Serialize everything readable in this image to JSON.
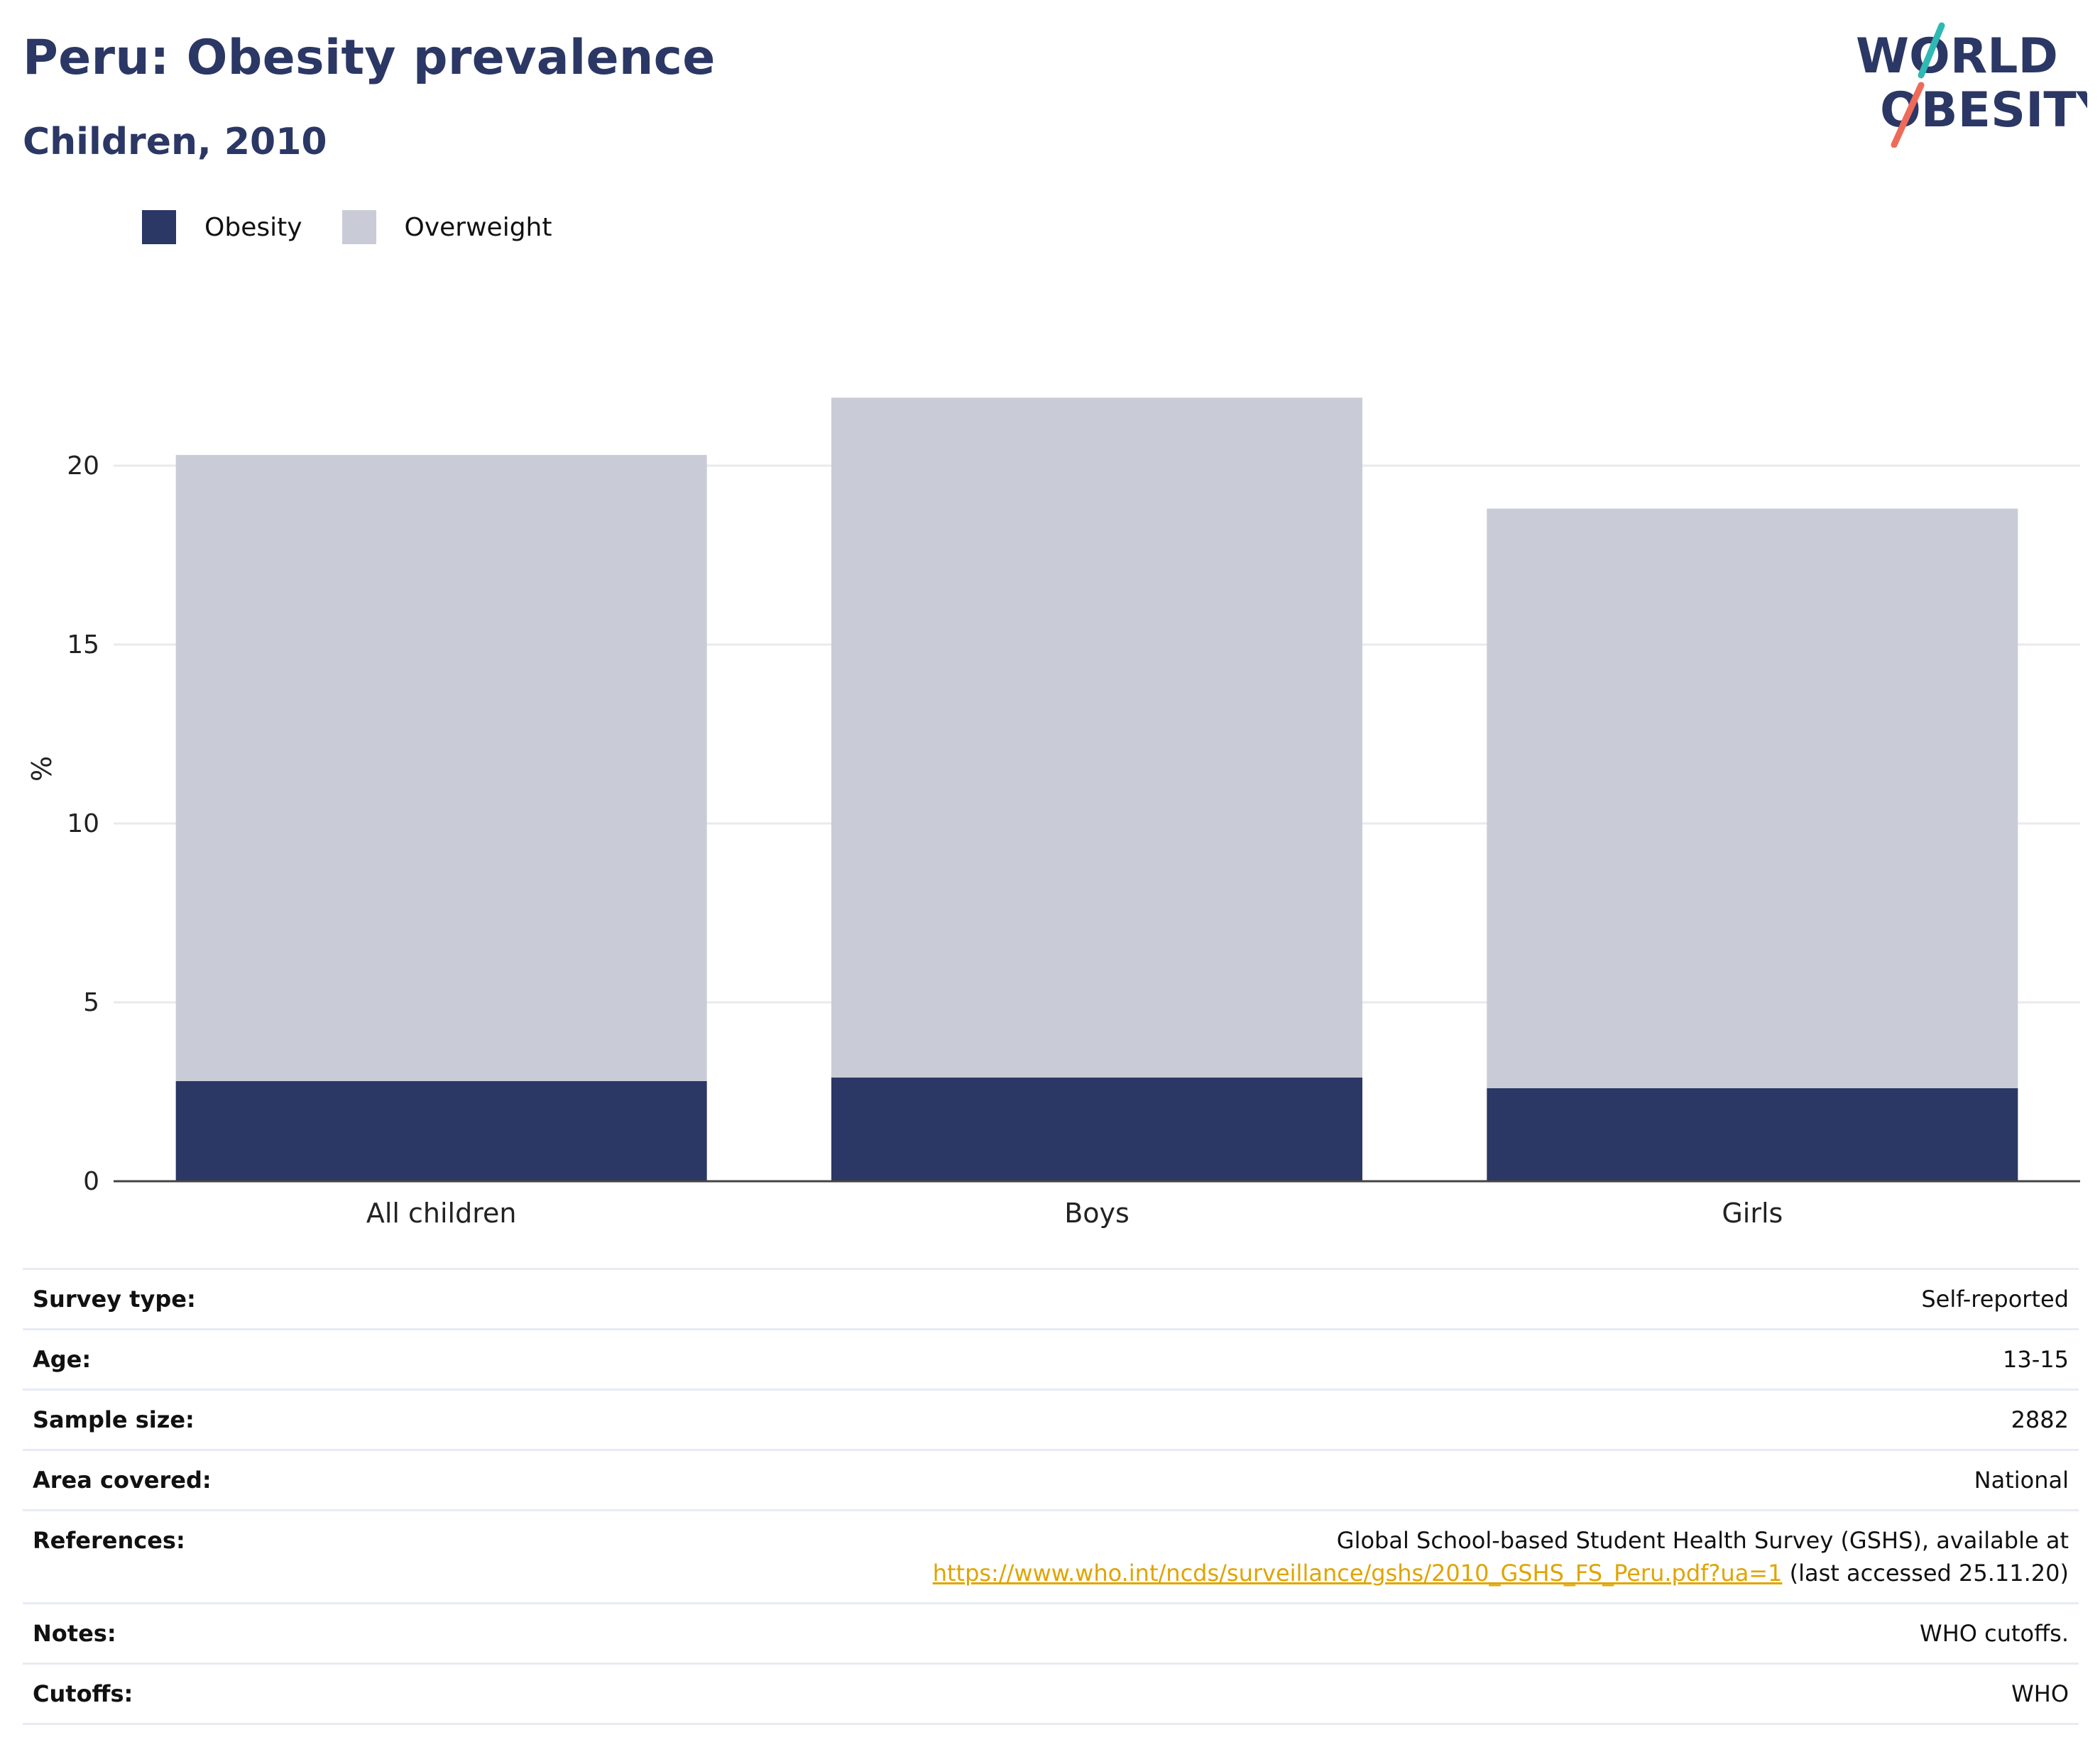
{
  "header": {
    "title": "Peru: Obesity prevalence",
    "subtitle": "Children, 2010",
    "logo_text_line1": "WORLD",
    "logo_text_line2": "OBESITY"
  },
  "legend": [
    {
      "label": "Obesity",
      "color": "#2b3764"
    },
    {
      "label": "Overweight",
      "color": "#c9cbd7"
    }
  ],
  "chart_data": {
    "type": "bar",
    "stacked": true,
    "categories": [
      "All children",
      "Boys",
      "Girls"
    ],
    "series": [
      {
        "name": "Obesity",
        "color": "#2b3764",
        "values": [
          2.8,
          2.9,
          2.6
        ]
      },
      {
        "name": "Overweight",
        "color": "#c9cbd7",
        "values": [
          17.5,
          19.0,
          16.2
        ]
      }
    ],
    "totals": [
      20.3,
      21.9,
      18.8
    ],
    "title": "Peru: Obesity prevalence",
    "subtitle": "Children, 2010",
    "xlabel": "",
    "ylabel": "%",
    "yticks": [
      0,
      5,
      10,
      15,
      20
    ],
    "ylim": [
      0,
      22.4
    ],
    "grid": true,
    "legend_position": "top-left"
  },
  "info": {
    "survey_type": {
      "label": "Survey type:",
      "value": "Self-reported"
    },
    "age": {
      "label": "Age:",
      "value": "13-15"
    },
    "sample_size": {
      "label": "Sample size:",
      "value": "2882"
    },
    "area": {
      "label": "Area covered:",
      "value": "National"
    },
    "references": {
      "label": "References:",
      "line1": "Global School-based Student Health Survey (GSHS), available at",
      "link": "https://www.who.int/ncds/surveillance/gshs/2010_GSHS_FS_Peru.pdf?ua=1",
      "suffix": " (last accessed 25.11.20)"
    },
    "notes": {
      "label": "Notes:",
      "value": "WHO cutoffs."
    },
    "cutoffs": {
      "label": "Cutoffs:",
      "value": "WHO"
    }
  }
}
